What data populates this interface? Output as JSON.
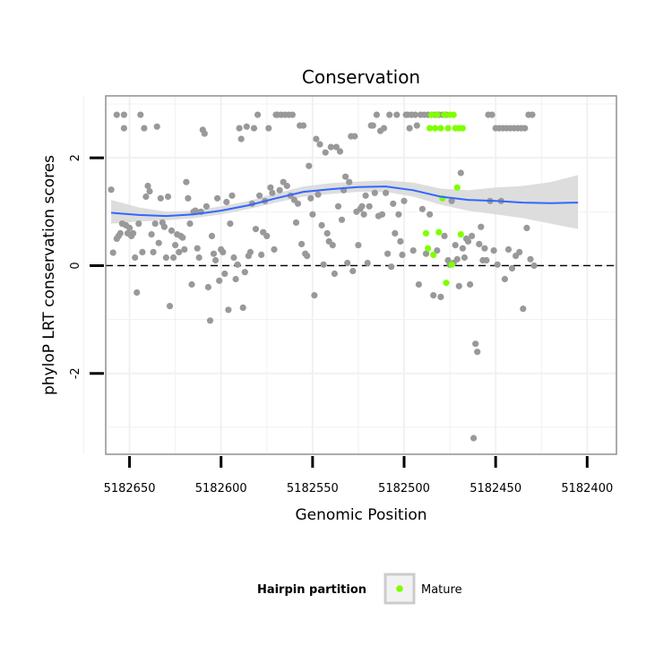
{
  "chart_data": {
    "type": "scatter",
    "title": "Conservation",
    "xlabel": "Genomic Position",
    "ylabel": "phyloP LRT conservation scores",
    "xlim": [
      5182663,
      5182384
    ],
    "ylim": [
      -3.5,
      3.15
    ],
    "x_reversed": true,
    "x_ticks": [
      5182650,
      5182600,
      5182550,
      5182500,
      5182450,
      5182400
    ],
    "x_tick_labels": [
      "5182650",
      "5182600",
      "5182550",
      "5182500",
      "5182450",
      "5182400"
    ],
    "y_ticks": [
      -2,
      0,
      2
    ],
    "y_tick_labels": [
      "-2",
      "0",
      "2"
    ],
    "grid": true,
    "reference_line": {
      "y": 0,
      "style": "dashed"
    },
    "legend": {
      "title": "Hairpin partition",
      "placement": "bottom",
      "entries": [
        {
          "label": "Mature",
          "color": "#7fff00"
        }
      ]
    },
    "colors": {
      "other": "#999999",
      "mature": "#7fff00",
      "smooth_line": "#3366ff",
      "ribbon": "#d9d9d9",
      "panel_border": "#888888",
      "grid": "#f1f1f1"
    },
    "series": [
      {
        "name": "Other",
        "color": "#999999",
        "points": [
          [
            5182660,
            1.41
          ],
          [
            5182659,
            0.24
          ],
          [
            5182657,
            2.8
          ],
          [
            5182657,
            0.5
          ],
          [
            5182656,
            0.55
          ],
          [
            5182655,
            0.6
          ],
          [
            5182654,
            0.78
          ],
          [
            5182653,
            2.8
          ],
          [
            5182653,
            2.55
          ],
          [
            5182652,
            0.75
          ],
          [
            5182651,
            0.6
          ],
          [
            5182650,
            0.7
          ],
          [
            5182649,
            0.55
          ],
          [
            5182648,
            0.6
          ],
          [
            5182647,
            0.15
          ],
          [
            5182646,
            -0.5
          ],
          [
            5182645,
            0.78
          ],
          [
            5182644,
            2.8
          ],
          [
            5182643,
            0.25
          ],
          [
            5182642,
            2.55
          ],
          [
            5182641,
            1.28
          ],
          [
            5182640,
            1.48
          ],
          [
            5182639,
            1.38
          ],
          [
            5182638,
            0.58
          ],
          [
            5182637,
            0.25
          ],
          [
            5182636,
            0.78
          ],
          [
            5182635,
            2.58
          ],
          [
            5182634,
            0.42
          ],
          [
            5182633,
            1.25
          ],
          [
            5182632,
            0.8
          ],
          [
            5182631,
            0.72
          ],
          [
            5182630,
            0.15
          ],
          [
            5182629,
            1.28
          ],
          [
            5182628,
            -0.75
          ],
          [
            5182627,
            0.65
          ],
          [
            5182626,
            0.15
          ],
          [
            5182625,
            0.38
          ],
          [
            5182624,
            0.58
          ],
          [
            5182623,
            0.25
          ],
          [
            5182622,
            0.55
          ],
          [
            5182621,
            0.52
          ],
          [
            5182620,
            0.3
          ],
          [
            5182619,
            1.55
          ],
          [
            5182618,
            1.25
          ],
          [
            5182617,
            0.78
          ],
          [
            5182616,
            -0.35
          ],
          [
            5182615,
            1.0
          ],
          [
            5182614,
            1.02
          ],
          [
            5182613,
            0.32
          ],
          [
            5182612,
            0.15
          ],
          [
            5182611,
            1.0
          ],
          [
            5182610,
            2.52
          ],
          [
            5182609,
            2.45
          ],
          [
            5182608,
            1.1
          ],
          [
            5182607,
            -0.4
          ],
          [
            5182606,
            -1.02
          ],
          [
            5182605,
            0.55
          ],
          [
            5182604,
            0.22
          ],
          [
            5182603,
            0.1
          ],
          [
            5182602,
            1.25
          ],
          [
            5182601,
            -0.28
          ],
          [
            5182600,
            0.3
          ],
          [
            5182599,
            0.25
          ],
          [
            5182598,
            -0.15
          ],
          [
            5182597,
            1.18
          ],
          [
            5182596,
            -0.82
          ],
          [
            5182595,
            0.78
          ],
          [
            5182594,
            1.3
          ],
          [
            5182593,
            0.15
          ],
          [
            5182592,
            -0.25
          ],
          [
            5182591,
            0.02
          ],
          [
            5182590,
            2.55
          ],
          [
            5182589,
            2.35
          ],
          [
            5182588,
            -0.78
          ],
          [
            5182587,
            -0.12
          ],
          [
            5182586,
            2.58
          ],
          [
            5182585,
            0.18
          ],
          [
            5182584,
            0.25
          ],
          [
            5182583,
            1.15
          ],
          [
            5182582,
            2.55
          ],
          [
            5182581,
            0.68
          ],
          [
            5182580,
            2.8
          ],
          [
            5182579,
            1.3
          ],
          [
            5182578,
            0.2
          ],
          [
            5182577,
            0.62
          ],
          [
            5182576,
            1.2
          ],
          [
            5182575,
            0.55
          ],
          [
            5182574,
            2.55
          ],
          [
            5182573,
            1.45
          ],
          [
            5182572,
            1.35
          ],
          [
            5182571,
            0.3
          ],
          [
            5182570,
            2.8
          ],
          [
            5182569,
            2.8
          ],
          [
            5182568,
            1.4
          ],
          [
            5182567,
            2.8
          ],
          [
            5182566,
            1.55
          ],
          [
            5182565,
            2.8
          ],
          [
            5182564,
            1.48
          ],
          [
            5182563,
            2.8
          ],
          [
            5182562,
            1.3
          ],
          [
            5182561,
            2.8
          ],
          [
            5182560,
            1.22
          ],
          [
            5182559,
            0.8
          ],
          [
            5182558,
            1.15
          ],
          [
            5182557,
            2.6
          ],
          [
            5182556,
            0.4
          ],
          [
            5182555,
            2.6
          ],
          [
            5182554,
            0.22
          ],
          [
            5182553,
            0.18
          ],
          [
            5182552,
            1.85
          ],
          [
            5182551,
            1.25
          ],
          [
            5182550,
            0.95
          ],
          [
            5182549,
            -0.55
          ],
          [
            5182548,
            2.35
          ],
          [
            5182547,
            1.32
          ],
          [
            5182546,
            2.25
          ],
          [
            5182545,
            0.75
          ],
          [
            5182544,
            0.02
          ],
          [
            5182543,
            2.1
          ],
          [
            5182542,
            0.6
          ],
          [
            5182541,
            0.45
          ],
          [
            5182540,
            2.2
          ],
          [
            5182539,
            0.38
          ],
          [
            5182538,
            -0.15
          ],
          [
            5182537,
            2.2
          ],
          [
            5182536,
            1.1
          ],
          [
            5182535,
            2.12
          ],
          [
            5182534,
            0.85
          ],
          [
            5182533,
            1.4
          ],
          [
            5182532,
            1.65
          ],
          [
            5182531,
            0.05
          ],
          [
            5182530,
            1.55
          ],
          [
            5182529,
            2.4
          ],
          [
            5182528,
            -0.1
          ],
          [
            5182527,
            2.4
          ],
          [
            5182526,
            1.0
          ],
          [
            5182525,
            0.38
          ],
          [
            5182524,
            1.05
          ],
          [
            5182523,
            1.1
          ],
          [
            5182522,
            0.95
          ],
          [
            5182521,
            1.3
          ],
          [
            5182520,
            0.05
          ],
          [
            5182519,
            1.1
          ],
          [
            5182518,
            2.6
          ],
          [
            5182517,
            2.6
          ],
          [
            5182516,
            1.35
          ],
          [
            5182515,
            2.8
          ],
          [
            5182514,
            0.92
          ],
          [
            5182513,
            2.5
          ],
          [
            5182512,
            0.95
          ],
          [
            5182511,
            2.55
          ],
          [
            5182510,
            1.35
          ],
          [
            5182509,
            0.22
          ],
          [
            5182508,
            2.8
          ],
          [
            5182507,
            -0.02
          ],
          [
            5182506,
            1.15
          ],
          [
            5182505,
            0.6
          ],
          [
            5182504,
            2.8
          ],
          [
            5182503,
            0.95
          ],
          [
            5182502,
            0.45
          ],
          [
            5182501,
            0.2
          ],
          [
            5182500,
            1.2
          ],
          [
            5182499,
            2.8
          ],
          [
            5182498,
            2.8
          ],
          [
            5182497,
            2.55
          ],
          [
            5182496,
            2.8
          ],
          [
            5182495,
            0.28
          ],
          [
            5182494,
            2.8
          ],
          [
            5182493,
            2.6
          ],
          [
            5182492,
            -0.35
          ],
          [
            5182491,
            2.8
          ],
          [
            5182490,
            1.05
          ],
          [
            5182489,
            2.8
          ],
          [
            5182488,
            0.22
          ],
          [
            5182487,
            2.8
          ],
          [
            5182486,
            0.95
          ],
          [
            5182485,
            2.8
          ],
          [
            5182484,
            -0.55
          ],
          [
            5182483,
            2.8
          ],
          [
            5182482,
            0.28
          ],
          [
            5182481,
            2.8
          ],
          [
            5182480,
            -0.58
          ],
          [
            5182479,
            2.8
          ],
          [
            5182478,
            0.55
          ],
          [
            5182477,
            2.8
          ],
          [
            5182476,
            0.1
          ],
          [
            5182475,
            0.02
          ],
          [
            5182474,
            1.2
          ],
          [
            5182473,
            0.05
          ],
          [
            5182472,
            0.38
          ],
          [
            5182471,
            0.12
          ],
          [
            5182470,
            -0.38
          ],
          [
            5182469,
            1.72
          ],
          [
            5182468,
            0.32
          ],
          [
            5182467,
            0.15
          ],
          [
            5182466,
            0.5
          ],
          [
            5182465,
            0.45
          ],
          [
            5182464,
            -0.35
          ],
          [
            5182463,
            0.55
          ],
          [
            5182462,
            -3.2
          ],
          [
            5182461,
            -1.45
          ],
          [
            5182460,
            -1.6
          ],
          [
            5182459,
            0.4
          ],
          [
            5182458,
            0.72
          ],
          [
            5182457,
            0.1
          ],
          [
            5182456,
            0.32
          ],
          [
            5182455,
            0.1
          ],
          [
            5182454,
            2.8
          ],
          [
            5182453,
            1.2
          ],
          [
            5182452,
            2.8
          ],
          [
            5182451,
            0.28
          ],
          [
            5182450,
            2.55
          ],
          [
            5182449,
            0.02
          ],
          [
            5182448,
            2.55
          ],
          [
            5182447,
            1.2
          ],
          [
            5182446,
            2.55
          ],
          [
            5182445,
            -0.25
          ],
          [
            5182444,
            2.55
          ],
          [
            5182443,
            0.3
          ],
          [
            5182442,
            2.55
          ],
          [
            5182441,
            -0.05
          ],
          [
            5182440,
            2.55
          ],
          [
            5182439,
            0.18
          ],
          [
            5182438,
            2.55
          ],
          [
            5182437,
            0.25
          ],
          [
            5182436,
            2.55
          ],
          [
            5182435,
            -0.8
          ],
          [
            5182434,
            2.55
          ],
          [
            5182433,
            0.7
          ],
          [
            5182432,
            2.8
          ],
          [
            5182431,
            0.12
          ],
          [
            5182430,
            2.8
          ],
          [
            5182429,
            0.0
          ]
        ]
      },
      {
        "name": "Mature",
        "color": "#7fff00",
        "points": [
          [
            5182488,
            0.6
          ],
          [
            5182487,
            0.32
          ],
          [
            5182486,
            2.55
          ],
          [
            5182485,
            2.8
          ],
          [
            5182484,
            0.2
          ],
          [
            5182483,
            2.55
          ],
          [
            5182482,
            2.8
          ],
          [
            5182481,
            0.62
          ],
          [
            5182480,
            2.55
          ],
          [
            5182479,
            1.25
          ],
          [
            5182478,
            2.8
          ],
          [
            5182477,
            -0.32
          ],
          [
            5182476,
            2.55
          ],
          [
            5182475,
            2.8
          ],
          [
            5182474,
            0.02
          ],
          [
            5182473,
            2.8
          ],
          [
            5182472,
            2.55
          ],
          [
            5182471,
            1.45
          ],
          [
            5182470,
            2.55
          ],
          [
            5182469,
            0.58
          ],
          [
            5182468,
            2.55
          ]
        ]
      }
    ],
    "smooth": {
      "x": [
        5182660,
        5182645,
        5182630,
        5182615,
        5182600,
        5182585,
        5182570,
        5182555,
        5182540,
        5182525,
        5182510,
        5182495,
        5182480,
        5182465,
        5182450,
        5182435,
        5182420,
        5182405
      ],
      "y": [
        0.98,
        0.94,
        0.92,
        0.95,
        1.02,
        1.12,
        1.25,
        1.37,
        1.42,
        1.46,
        1.47,
        1.4,
        1.28,
        1.22,
        1.2,
        1.17,
        1.16,
        1.17
      ],
      "lower": [
        0.78,
        0.82,
        0.84,
        0.88,
        0.95,
        1.05,
        1.17,
        1.28,
        1.33,
        1.37,
        1.37,
        1.28,
        1.13,
        1.02,
        0.95,
        0.88,
        0.78,
        0.68
      ],
      "upper": [
        1.22,
        1.08,
        1.0,
        1.02,
        1.1,
        1.2,
        1.34,
        1.47,
        1.53,
        1.56,
        1.58,
        1.54,
        1.43,
        1.4,
        1.45,
        1.48,
        1.55,
        1.68
      ]
    }
  }
}
